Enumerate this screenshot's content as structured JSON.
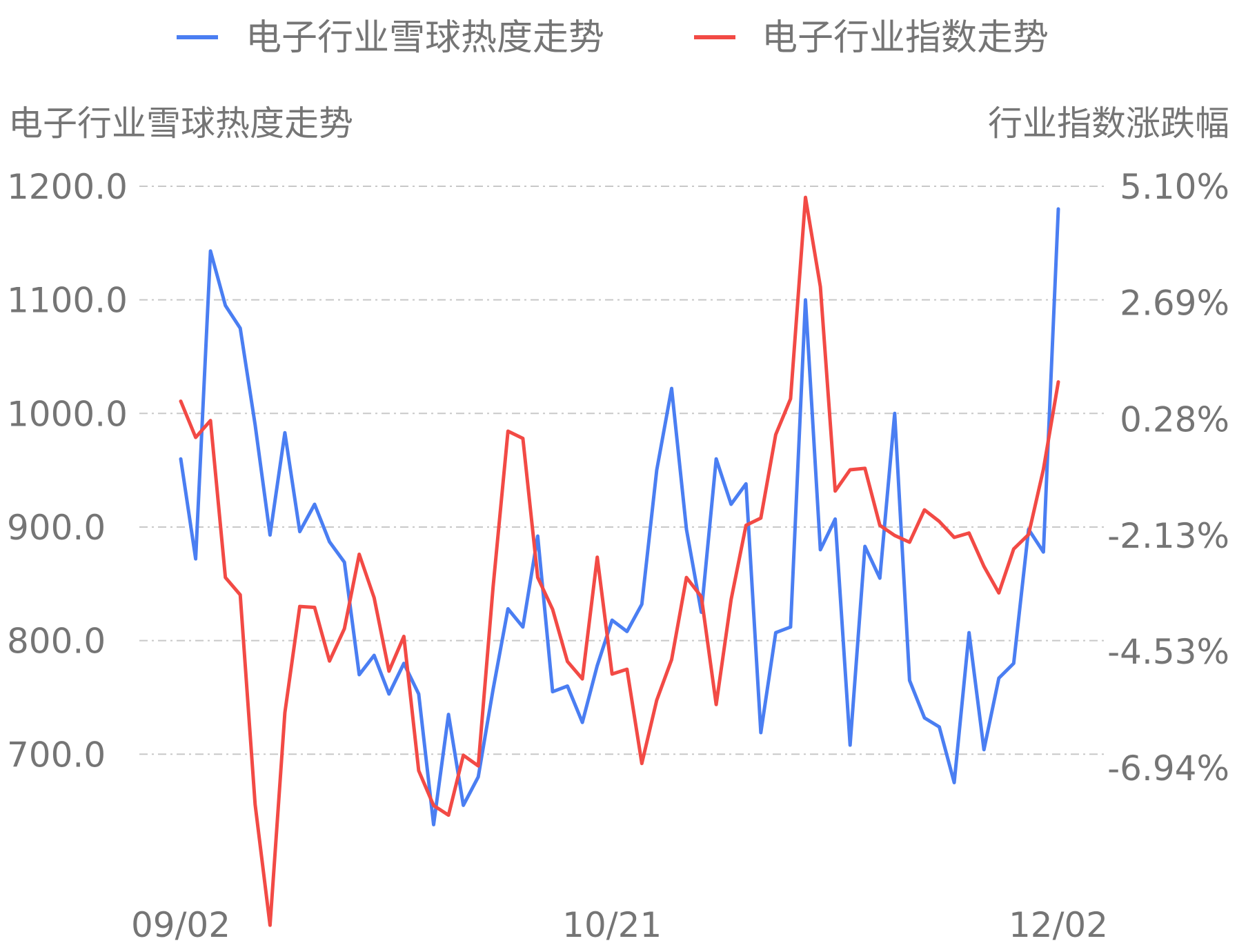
{
  "chart_data": {
    "type": "line",
    "legend_position": "top-center",
    "grid": true,
    "y_left": {
      "label": "电子行业雪球热度走势",
      "ticks": [
        "1200.0",
        "1100.0",
        "1000.0",
        "900.0",
        "800.0",
        "700.0"
      ],
      "tick_values": [
        1200,
        1100,
        1000,
        900,
        800,
        700
      ],
      "range": [
        620,
        1200
      ]
    },
    "y_right": {
      "label": "行业指数涨跌幅",
      "ticks": [
        "5.10%",
        "2.69%",
        "0.28%",
        "-2.13%",
        "-4.53%",
        "-6.94%"
      ],
      "tick_values": [
        5.1,
        2.69,
        0.28,
        -2.13,
        -4.53,
        -6.94
      ],
      "range": [
        -8.54,
        5.1
      ]
    },
    "x_ticks": [
      {
        "label": "09/02",
        "index": 0
      },
      {
        "label": "10/21",
        "index": 29
      },
      {
        "label": "12/02",
        "index": 59
      }
    ],
    "series": [
      {
        "name": "电子行业雪球热度走势",
        "axis": "left",
        "color": "#4a7ef2",
        "values": [
          960,
          872,
          1143,
          1095,
          1075,
          990,
          893,
          983,
          896,
          920,
          887,
          869,
          770,
          787,
          753,
          780,
          753,
          638,
          735,
          655,
          680,
          757,
          828,
          812,
          892,
          755,
          760,
          728,
          778,
          818,
          808,
          832,
          950,
          1022,
          898,
          825,
          960,
          920,
          938,
          719,
          807,
          812,
          1100,
          880,
          907,
          708,
          883,
          855,
          1000,
          765,
          732,
          724,
          675,
          807,
          704,
          767,
          780,
          898,
          878,
          1180
        ]
      },
      {
        "name": "电子行业指数走势",
        "axis": "right",
        "color": "#f24a45",
        "values": [
          0.65,
          -0.1,
          0.25,
          -3.0,
          -3.36,
          -7.7,
          -10.2,
          -5.8,
          -3.6,
          -3.62,
          -4.73,
          -4.06,
          -2.52,
          -3.42,
          -4.94,
          -4.22,
          -7.0,
          -7.72,
          -7.92,
          -6.68,
          -6.9,
          -3.2,
          0.03,
          -0.12,
          -3.0,
          -3.66,
          -4.74,
          -5.1,
          -2.58,
          -5.0,
          -4.9,
          -6.85,
          -5.54,
          -4.7,
          -3.0,
          -3.4,
          -5.63,
          -3.46,
          -1.92,
          -1.77,
          -0.04,
          0.7,
          4.87,
          3.02,
          -1.21,
          -0.77,
          -0.74,
          -1.92,
          -2.13,
          -2.27,
          -1.6,
          -1.84,
          -2.17,
          -2.08,
          -2.77,
          -3.32,
          -2.41,
          -2.11,
          -0.76,
          1.05
        ]
      }
    ]
  }
}
